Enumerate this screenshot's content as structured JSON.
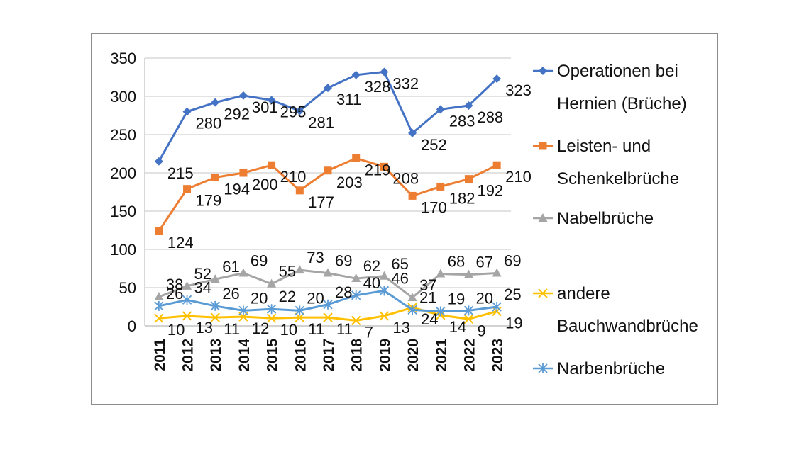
{
  "chart_data": {
    "type": "line",
    "title": "",
    "xlabel": "",
    "ylabel": "",
    "ylim": [
      0,
      350
    ],
    "yticks": [
      0,
      50,
      100,
      150,
      200,
      250,
      300,
      350
    ],
    "grid": true,
    "legend": "right",
    "categories": [
      "2011",
      "2012",
      "2013",
      "2014",
      "2015",
      "2016",
      "2017",
      "2018",
      "2019",
      "2020",
      "2021",
      "2022",
      "2023"
    ],
    "series": [
      {
        "name": "Operationen bei Hernien (Brüche)",
        "name_lines": [
          "Operationen bei",
          "Hernien (Brüche)"
        ],
        "color": "#4472C4",
        "marker": "diamond",
        "values": [
          215,
          280,
          292,
          301,
          295,
          281,
          311,
          328,
          332,
          252,
          283,
          288,
          323
        ]
      },
      {
        "name": "Leisten- und Schenkelbrüche",
        "name_lines": [
          "Leisten- und",
          "Schenkelbrüche"
        ],
        "color": "#ED7D31",
        "marker": "square",
        "values": [
          124,
          179,
          194,
          200,
          210,
          177,
          203,
          219,
          208,
          170,
          182,
          192,
          210
        ]
      },
      {
        "name": "Nabelbrüche",
        "name_lines": [
          "Nabelbrüche"
        ],
        "color": "#A5A5A5",
        "marker": "triangle",
        "values": [
          38,
          52,
          61,
          69,
          55,
          73,
          69,
          62,
          65,
          37,
          68,
          67,
          69
        ]
      },
      {
        "name": "andere Bauchwandbrüche",
        "name_lines": [
          "andere",
          "Bauchwandbrüche"
        ],
        "color": "#FFC000",
        "marker": "x",
        "values": [
          10,
          13,
          11,
          12,
          10,
          11,
          11,
          7,
          13,
          24,
          14,
          9,
          19
        ]
      },
      {
        "name": "Narbenbrüche",
        "name_lines": [
          "Narbenbrüche"
        ],
        "color": "#5B9BD5",
        "marker": "star",
        "values": [
          26,
          34,
          26,
          20,
          22,
          20,
          28,
          40,
          46,
          21,
          19,
          20,
          25
        ]
      }
    ]
  }
}
